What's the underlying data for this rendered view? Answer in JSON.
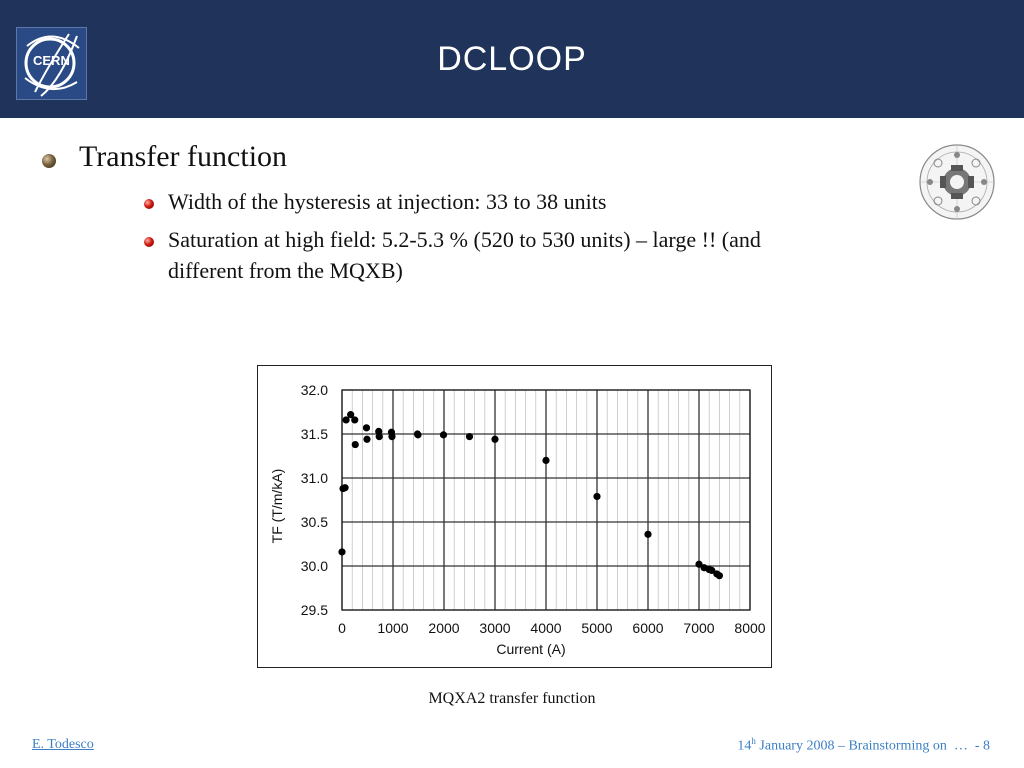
{
  "header": {
    "title": "DCLOOP",
    "logo_text": "CERN",
    "background": "#1f335b"
  },
  "bullets": {
    "main": "Transfer function",
    "sub": [
      "Width of the hysteresis at injection: 33 to 38 units",
      "Saturation at high field: 5.2-5.3 % (520 to 530 units) – large !! (and",
      "different from the MQXB)"
    ]
  },
  "chart_data": {
    "type": "scatter",
    "xlabel": "Current (A)",
    "ylabel": "TF (T/m/kA)",
    "xlim": [
      0,
      8000
    ],
    "ylim": [
      29.5,
      32.0
    ],
    "x_ticks": [
      "0",
      "1000",
      "2000",
      "3000",
      "4000",
      "5000",
      "6000",
      "7000",
      "8000"
    ],
    "y_ticks": [
      "29.5",
      "30.0",
      "30.5",
      "31.0",
      "31.5",
      "32.0"
    ],
    "grid": true,
    "series": [
      {
        "points": [
          [
            0,
            30.16
          ],
          [
            20,
            30.88
          ],
          [
            60,
            30.89
          ],
          [
            80,
            31.66
          ],
          [
            170,
            31.72
          ],
          [
            250,
            31.66
          ],
          [
            260,
            31.38
          ],
          [
            480,
            31.57
          ],
          [
            490,
            31.44
          ],
          [
            720,
            31.53
          ],
          [
            730,
            31.47
          ],
          [
            970,
            31.52
          ],
          [
            980,
            31.47
          ],
          [
            1480,
            31.5
          ],
          [
            1490,
            31.49
          ],
          [
            1990,
            31.49
          ],
          [
            2500,
            31.47
          ],
          [
            3000,
            31.44
          ],
          [
            4000,
            31.2
          ],
          [
            5000,
            30.79
          ],
          [
            6000,
            30.36
          ],
          [
            7000,
            30.02
          ],
          [
            7100,
            29.98
          ],
          [
            7200,
            29.96
          ],
          [
            7250,
            29.95
          ],
          [
            7350,
            29.91
          ],
          [
            7400,
            29.89
          ]
        ]
      }
    ]
  },
  "caption": "MQXA2 transfer function",
  "footer": {
    "author": "E. Todesco",
    "date_prefix": "14",
    "date_sup": "h",
    "date_rest": " January 2008 – Brainstorming on  …  - 8",
    "link_color": "#3c7fc4"
  },
  "colors": {
    "bullet_main": "#6b5535",
    "bullet_sub": "#c81810"
  }
}
